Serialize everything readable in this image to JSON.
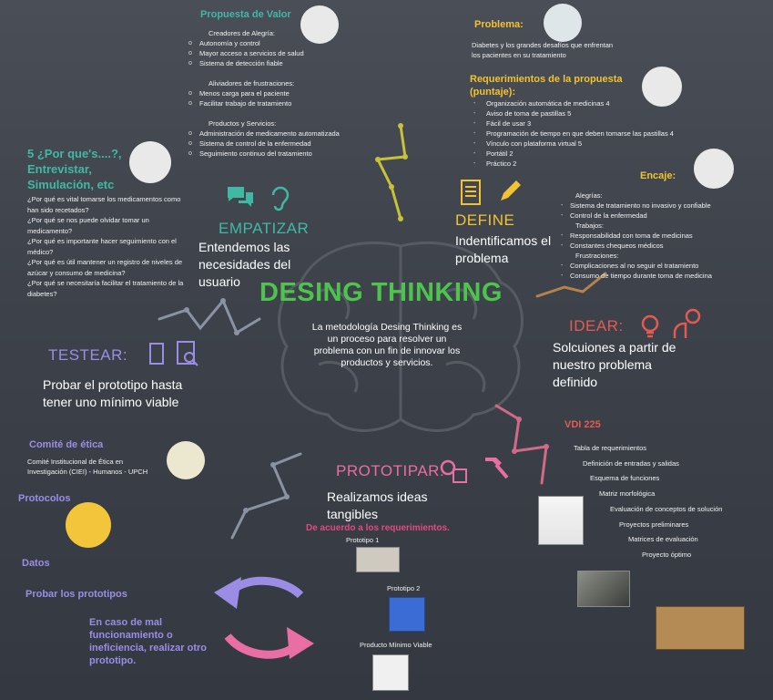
{
  "title": "DESING THINKING",
  "center_text": "La metodología Desing Thinking es un proceso para resolver un problema con un fin de innovar los productos y servicios.",
  "empatizar": {
    "label": "EMPATIZAR",
    "desc": "Entendemos las necesidades del usuario",
    "questions_title": "5 ¿Por que's....?, Entrevistar, Simulación, etc",
    "questions": [
      "¿Por qué es vital tomarse los medicamentos como han sido recetados?",
      "¿Por qué se nos puede olvidar tomar un medicamento?",
      "¿Por qué es importante hacer seguimiento con el médico?",
      "¿Por qué es útil mantener un registro de niveles de azúcar y consumo de medicina?",
      "¿Por qué se necesitaría facilitar el tratamiento de la diabetes?"
    ]
  },
  "propuesta": {
    "title": "Propuesta de Valor",
    "g1_title": "Creadores de Alegría:",
    "g1": [
      "Autonomía y control",
      "Mayor acceso a servicios de salud",
      "Sistema de detección fiable"
    ],
    "g2_title": "Aliviadores de frustraciones:",
    "g2": [
      "Menos carga para el paciente",
      "Facilitar trabajo de tratamiento"
    ],
    "g3_title": "Productos y Servicios:",
    "g3": [
      "Administración de medicamento automatizada",
      "Sistema de control de la enfermedad",
      "Seguimiento continuo del tratamiento"
    ]
  },
  "define": {
    "label": "DEFINE",
    "desc": "Indentificamos el problema",
    "problema_title": "Problema:",
    "problema_text": "Diabetes y los grandes desafíos que enfrentan los pacientes en su tratamiento",
    "req_title": "Requerimientos de la propuesta (puntaje):",
    "req": [
      "Organización automática de medicinas 4",
      "Aviso de toma de pastillas 5",
      "Fácil de usar 3",
      "Programación de tiempo en que deben tomarse las pastillas 4",
      "Vínculo con plataforma virtual 5",
      "Portátil 2",
      "Práctico 2"
    ]
  },
  "encaje": {
    "title": "Encaje:",
    "alegrias_title": "Alegrías:",
    "alegrias": [
      "Sistema de tratamiento no invasivo y confiable",
      "Control de la enfermedad"
    ],
    "trabajos_title": "Trabajos:",
    "trabajos": [
      "Responsabilidad con toma de medicinas",
      "Constantes chequeos médicos"
    ],
    "frustraciones_title": "Frustraciones:",
    "frustraciones": [
      "Complicaciones al no seguir el tratamiento",
      "Consumo de tiempo durante toma de medicina"
    ]
  },
  "idear": {
    "label": "IDEAR:",
    "desc": "Solcuiones a partir de nuestro problema definido",
    "vdi_title": "VDI 225",
    "vdi": [
      "Tabla de requerimientos",
      "Definición de entradas y salidas",
      "Esquema de funciones",
      "Matriz morfológica",
      "Evaluación de conceptos de solución",
      "Proyectos preliminares",
      "Matrices de evaluación",
      "Proyecto óptimo"
    ]
  },
  "prototipar": {
    "label": "PROTOTIPAR:",
    "desc": "Realizamos ideas tangibles",
    "sub": "De acuerdo a los requerimientos.",
    "p1": "Prototipo 1",
    "p2": "Prototipo 2",
    "pmv": "Producto Mínimo Viable"
  },
  "testear": {
    "label": "TESTEAR:",
    "desc": "Probar el prototipo hasta tener uno mínimo viable",
    "comite_title": "Comité de ética",
    "comite_text": "Comité Institucional de Ética en Investigación (CIEI) - Humanos - UPCH",
    "protocolos": "Protocolos",
    "datos": "Datos",
    "probar": "Probar los prototipos",
    "fallo": "En caso de mal funcionamiento o ineficiencia, realizar otro prototipo."
  },
  "colors": {
    "teal": "#3fb9a4",
    "yellow": "#f1c232",
    "red": "#e45a53",
    "pink": "#e96ea4",
    "purple": "#9b8de6",
    "green": "#4ec44e"
  }
}
